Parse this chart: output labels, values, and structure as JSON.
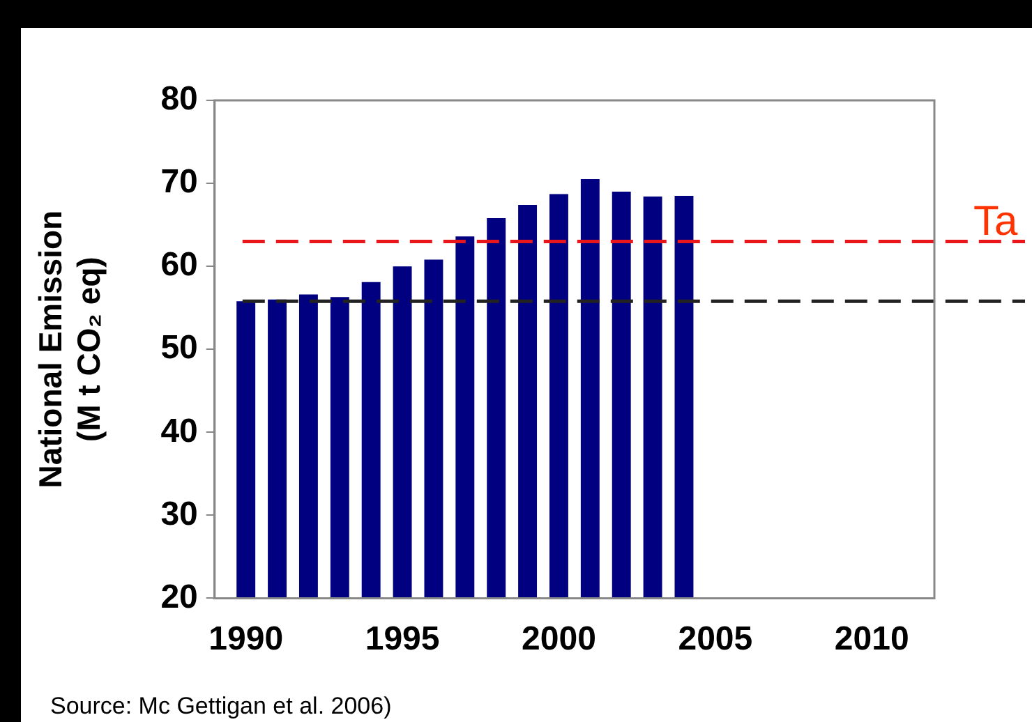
{
  "chart_data": {
    "type": "bar",
    "ylabel": "National Emission\n(M t CO₂ eq)",
    "x": [
      1990,
      1991,
      1992,
      1993,
      1994,
      1995,
      1996,
      1997,
      1998,
      1999,
      2000,
      2001,
      2002,
      2003,
      2004
    ],
    "values": [
      55.8,
      56.0,
      56.6,
      56.3,
      58.1,
      60.0,
      60.8,
      63.6,
      65.8,
      67.4,
      68.7,
      70.5,
      69.0,
      68.4,
      68.5
    ],
    "color": "#000080",
    "xlim": [
      1989,
      2012
    ],
    "xticks": [
      1990,
      1995,
      2000,
      2005,
      2010
    ],
    "ylim": [
      20,
      80
    ],
    "yticks": [
      20,
      30,
      40,
      50,
      60,
      70,
      80
    ],
    "ref_lines": [
      {
        "axis": "y",
        "value": 63,
        "label": "Ta",
        "color": "#e8151b",
        "line_style": "dashed"
      },
      {
        "axis": "y",
        "value": 55.8,
        "color": "#222222",
        "line_style": "dashed"
      }
    ],
    "annotations": [
      "Source: Mc Gettigan et al. 2006)"
    ],
    "grid": false,
    "legend": false
  }
}
